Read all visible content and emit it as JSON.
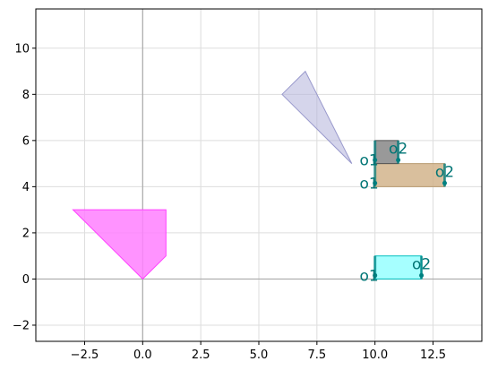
{
  "chart_data": {
    "type": "scatter",
    "title": "",
    "xlabel": "",
    "ylabel": "",
    "xlim": [
      -4.6,
      14.6
    ],
    "ylim": [
      -2.7,
      11.7
    ],
    "xticks": [
      -2.5,
      0.0,
      2.5,
      5.0,
      7.5,
      10.0,
      12.5
    ],
    "xtick_labels": [
      "−2.5",
      "0.0",
      "2.5",
      "5.0",
      "7.5",
      "10.0",
      "12.5"
    ],
    "yticks": [
      -2,
      0,
      2,
      4,
      6,
      8,
      10
    ],
    "ytick_labels": [
      "−2",
      "0",
      "2",
      "4",
      "6",
      "8",
      "10"
    ],
    "grid": true,
    "shapes": [
      {
        "kind": "polygon",
        "points": [
          [
            -3,
            3
          ],
          [
            1,
            3
          ],
          [
            1,
            1
          ],
          [
            0,
            0
          ]
        ],
        "fill": "#ff80ff",
        "stroke": "#ff40ff",
        "opacity": 0.85
      },
      {
        "kind": "polygon",
        "points": [
          [
            6,
            8
          ],
          [
            7,
            9
          ],
          [
            9,
            5
          ]
        ],
        "fill": "#b3b3da",
        "stroke": "#9999cc",
        "opacity": 0.55
      },
      {
        "kind": "rect",
        "x": [
          10,
          12
        ],
        "y": [
          0,
          1
        ],
        "fill": "#80ffff",
        "stroke": "#00bfbf",
        "opacity": 0.7
      },
      {
        "kind": "rect",
        "x": [
          10,
          13
        ],
        "y": [
          4,
          5
        ],
        "fill": "#d2b48c",
        "stroke": "#b89a70",
        "opacity": 0.85
      },
      {
        "kind": "rect",
        "x": [
          10,
          11
        ],
        "y": [
          5,
          6
        ],
        "fill": "#808080",
        "stroke": "#555555",
        "opacity": 0.8
      }
    ],
    "markers": [
      {
        "x": 10,
        "y0": 0,
        "y1": 1
      },
      {
        "x": 12,
        "y0": 0,
        "y1": 1
      },
      {
        "x": 10,
        "y0": 4,
        "y1": 5
      },
      {
        "x": 13,
        "y0": 4,
        "y1": 5
      },
      {
        "x": 10,
        "y0": 5,
        "y1": 6
      },
      {
        "x": 11,
        "y0": 5,
        "y1": 6
      }
    ],
    "annotations": [
      {
        "text": "o1",
        "x": 10,
        "y": 0,
        "anchor": "end"
      },
      {
        "text": "o2",
        "x": 12,
        "y": 0.5,
        "anchor": "middle"
      },
      {
        "text": "o1",
        "x": 10,
        "y": 4,
        "anchor": "end"
      },
      {
        "text": "o2",
        "x": 13,
        "y": 4.5,
        "anchor": "middle"
      },
      {
        "text": "o1",
        "x": 10,
        "y": 5,
        "anchor": "end"
      },
      {
        "text": "o2",
        "x": 11,
        "y": 5.5,
        "anchor": "middle"
      }
    ],
    "marker_color": "#008080",
    "axis_line_color": "#aaaaaa",
    "grid_color": "#dddddd"
  }
}
